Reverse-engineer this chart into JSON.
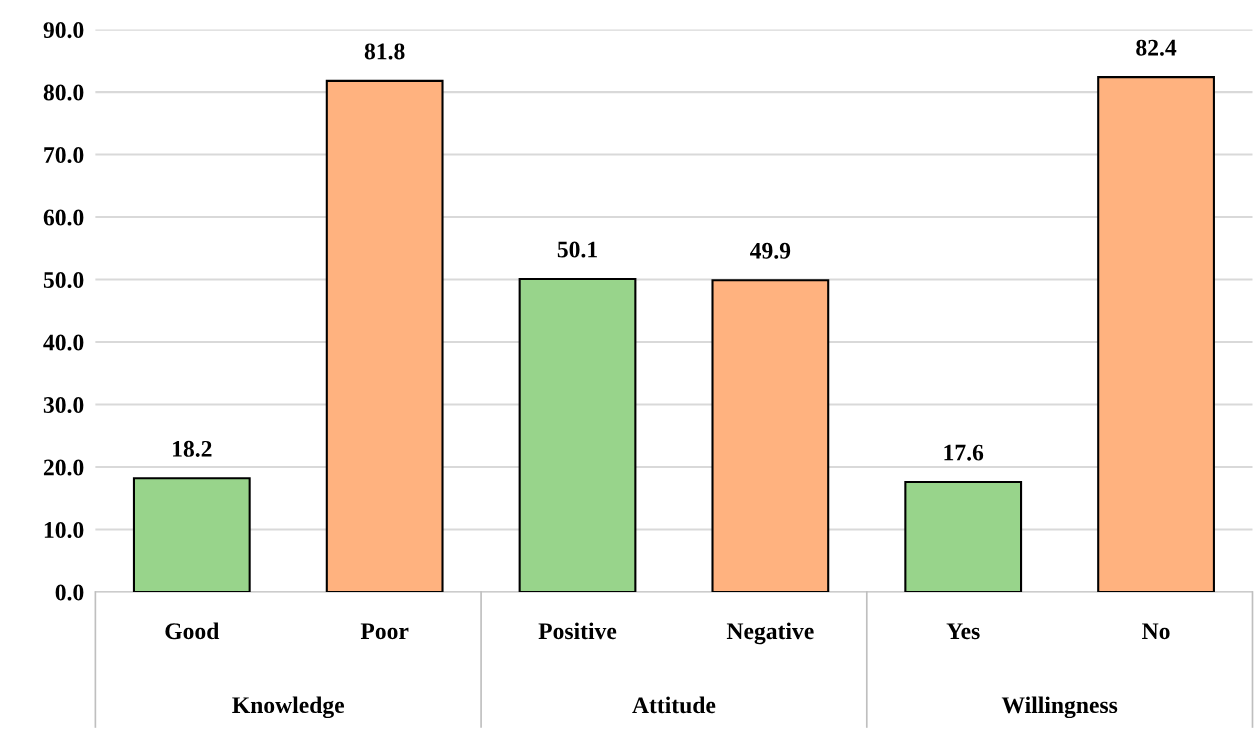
{
  "chart_data": {
    "type": "bar",
    "categories": [
      "Good",
      "Poor",
      "Positive",
      "Negative",
      "Yes",
      "No"
    ],
    "values": [
      18.2,
      81.8,
      50.1,
      49.9,
      17.6,
      82.4
    ],
    "colors": [
      "#98d48b",
      "#ffb27f",
      "#98d48b",
      "#ffb27f",
      "#98d48b",
      "#ffb27f"
    ],
    "data_labels": true,
    "ylim": [
      0,
      90
    ],
    "yticks": [
      {
        "value": 0,
        "label": "0.0"
      },
      {
        "value": 10,
        "label": "10.0"
      },
      {
        "value": 20,
        "label": "20.0"
      },
      {
        "value": 30,
        "label": "30.0"
      },
      {
        "value": 40,
        "label": "40.0"
      },
      {
        "value": 50,
        "label": "50.0"
      },
      {
        "value": 60,
        "label": "60.0"
      },
      {
        "value": 70,
        "label": "70.0"
      },
      {
        "value": 80,
        "label": "80.0"
      },
      {
        "value": 90,
        "label": "90.0"
      }
    ],
    "grid": "y",
    "annotations": [
      "Knowledge",
      "Attitude",
      "Willingness"
    ]
  }
}
